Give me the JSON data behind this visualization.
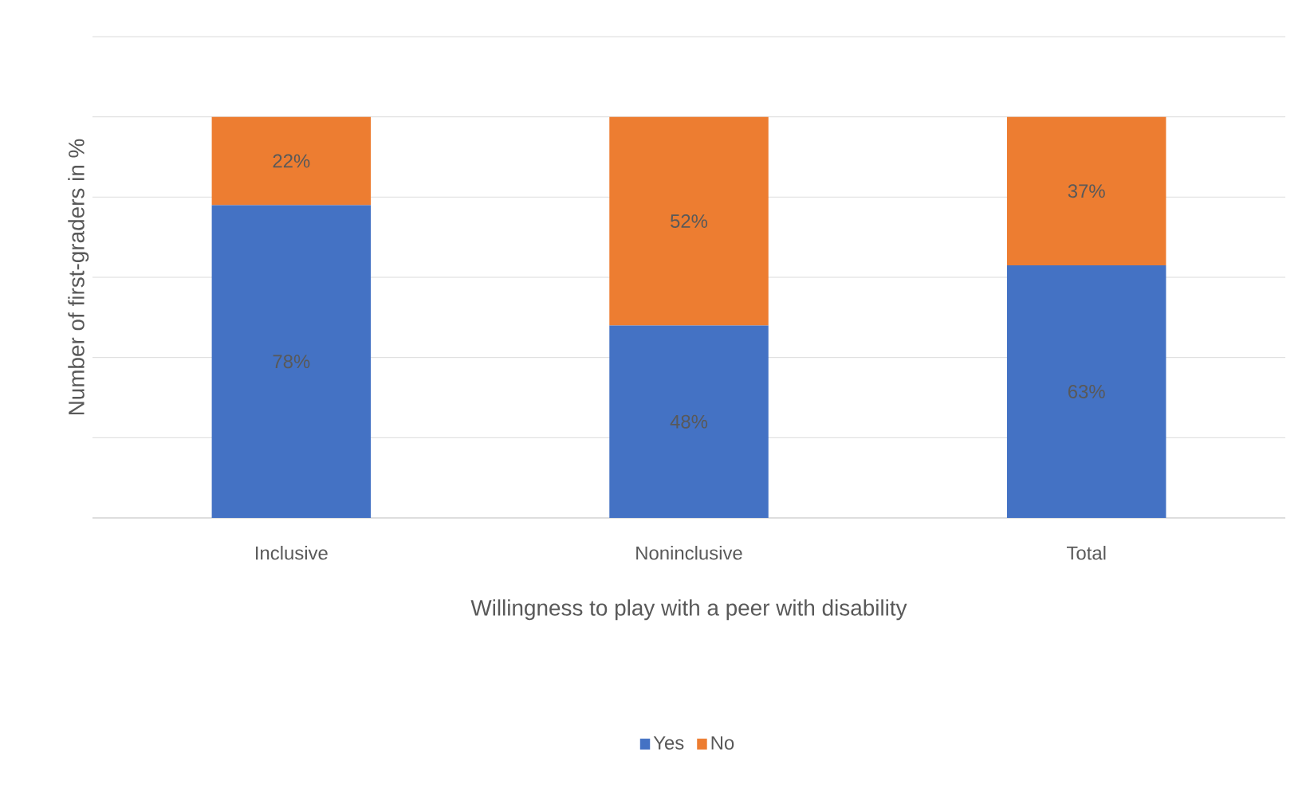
{
  "chart_data": {
    "type": "bar",
    "stacked": true,
    "xlabel": "Willingness to play with a peer with disability",
    "ylabel": "Number of first-graders in %",
    "categories": [
      "Inclusive",
      "Noninclusive",
      "Total"
    ],
    "ylim": [
      0,
      120
    ],
    "yticks": [
      {
        "value": 0,
        "label": null
      },
      {
        "value": 20,
        "label": null
      },
      {
        "value": 40,
        "label": null
      },
      {
        "value": 60,
        "label": null
      },
      {
        "value": 80,
        "label": null
      },
      {
        "value": 100,
        "label": null
      },
      {
        "value": 120,
        "label": null
      }
    ],
    "tick_labels": "x",
    "grid": "y",
    "legend": "bottom",
    "series": [
      {
        "name": "Yes",
        "color": "#4472c4",
        "values": [
          78,
          48,
          63
        ],
        "value_labels": [
          "78%",
          "48%",
          "63%"
        ]
      },
      {
        "name": "No",
        "color": "#ed7d31",
        "values": [
          22,
          52,
          37
        ],
        "value_labels": [
          "22%",
          "52%",
          "37%"
        ]
      }
    ]
  }
}
